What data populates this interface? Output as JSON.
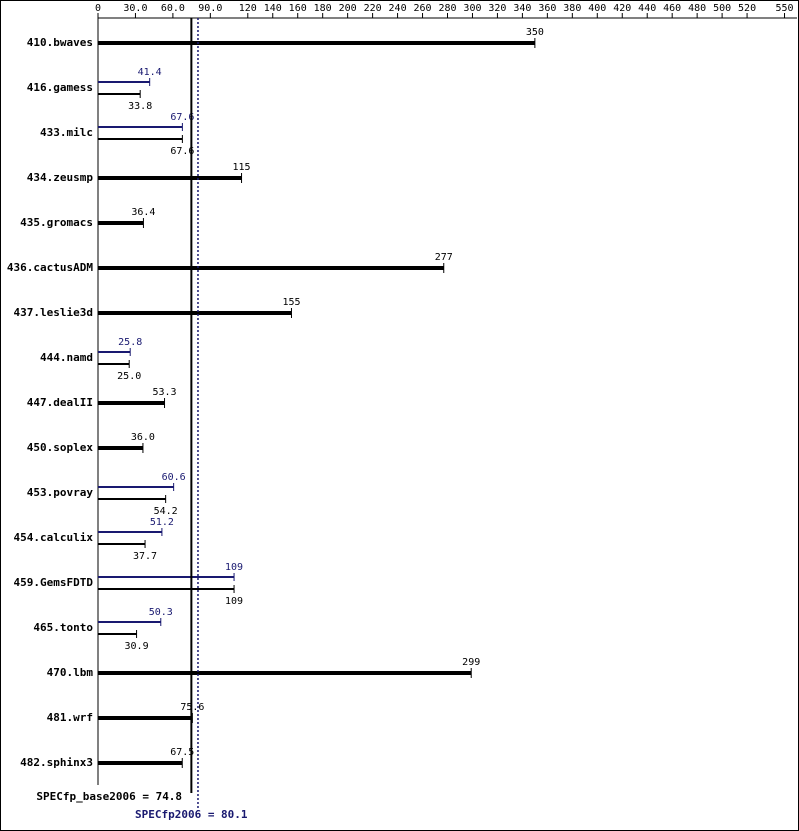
{
  "chart_data": {
    "type": "bar",
    "categories": [
      "410.bwaves",
      "416.gamess",
      "433.milc",
      "434.zeusmp",
      "435.gromacs",
      "436.cactusADM",
      "437.leslie3d",
      "444.namd",
      "447.dealII",
      "450.soplex",
      "453.povray",
      "454.calculix",
      "459.GemsFDTD",
      "465.tonto",
      "470.lbm",
      "481.wrf",
      "482.sphinx3"
    ],
    "series": [
      {
        "color": "#000000",
        "values": [
          350,
          33.8,
          67.6,
          115,
          36.4,
          277,
          155,
          25.0,
          53.3,
          36.0,
          54.2,
          37.7,
          109,
          30.9,
          299,
          75.6,
          67.5
        ],
        "value_labels": [
          "350",
          "33.8",
          "67.6",
          "115",
          "36.4",
          "277",
          "155",
          "25.0",
          "53.3",
          "36.0",
          "54.2",
          "37.7",
          "109",
          "30.9",
          "299",
          "75.6",
          "67.5"
        ]
      },
      {
        "color": "#191970",
        "values": [
          null,
          41.4,
          67.6,
          null,
          null,
          null,
          null,
          25.8,
          null,
          null,
          60.6,
          51.2,
          109,
          50.3,
          null,
          null,
          null
        ],
        "value_labels": [
          null,
          "41.4",
          "67.6",
          null,
          null,
          null,
          null,
          "25.8",
          null,
          null,
          "60.6",
          "51.2",
          "109",
          "50.3",
          null,
          null,
          null
        ]
      }
    ],
    "xlim": [
      0,
      560
    ],
    "xticks": [
      0,
      {
        "value": 30,
        "label": "30.0"
      },
      {
        "value": 60,
        "label": "60.0"
      },
      {
        "value": 90,
        "label": "90.0"
      },
      120,
      140,
      160,
      180,
      200,
      220,
      240,
      260,
      280,
      300,
      320,
      340,
      360,
      380,
      400,
      420,
      440,
      460,
      480,
      500,
      520,
      550
    ],
    "summary": [
      {
        "label": "SPECfp_base2006 = 74.8",
        "value": 74.8,
        "color": "#000000"
      },
      {
        "label": "SPECfp2006 = 80.1",
        "value": 80.1,
        "color": "#191970"
      }
    ]
  }
}
